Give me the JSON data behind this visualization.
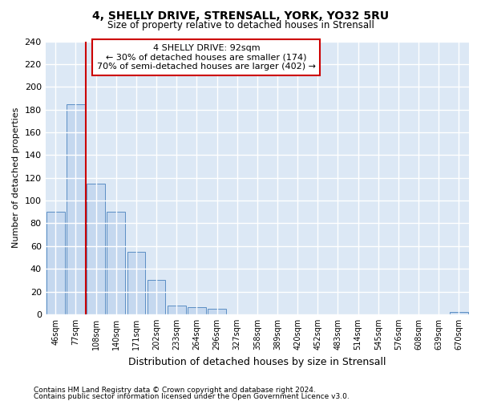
{
  "title": "4, SHELLY DRIVE, STRENSALL, YORK, YO32 5RU",
  "subtitle": "Size of property relative to detached houses in Strensall",
  "xlabel": "Distribution of detached houses by size in Strensall",
  "ylabel": "Number of detached properties",
  "bar_labels": [
    "46sqm",
    "77sqm",
    "108sqm",
    "140sqm",
    "171sqm",
    "202sqm",
    "233sqm",
    "264sqm",
    "296sqm",
    "327sqm",
    "358sqm",
    "389sqm",
    "420sqm",
    "452sqm",
    "483sqm",
    "514sqm",
    "545sqm",
    "576sqm",
    "608sqm",
    "639sqm",
    "670sqm"
  ],
  "bar_values": [
    90,
    185,
    115,
    90,
    55,
    30,
    8,
    6,
    5,
    0,
    0,
    0,
    0,
    0,
    0,
    0,
    0,
    0,
    0,
    0,
    2
  ],
  "bar_color": "#c5d8ef",
  "bar_edge_color": "#5b8ec4",
  "vline_color": "#cc0000",
  "vline_x": 1.5,
  "ylim": [
    0,
    240
  ],
  "yticks": [
    0,
    20,
    40,
    60,
    80,
    100,
    120,
    140,
    160,
    180,
    200,
    220,
    240
  ],
  "annotation_text": "4 SHELLY DRIVE: 92sqm\n← 30% of detached houses are smaller (174)\n70% of semi-detached houses are larger (402) →",
  "annotation_box_color": "#ffffff",
  "annotation_box_edge_color": "#cc0000",
  "bg_color": "#dce8f5",
  "grid_color": "#ffffff",
  "footer_line1": "Contains HM Land Registry data © Crown copyright and database right 2024.",
  "footer_line2": "Contains public sector information licensed under the Open Government Licence v3.0."
}
